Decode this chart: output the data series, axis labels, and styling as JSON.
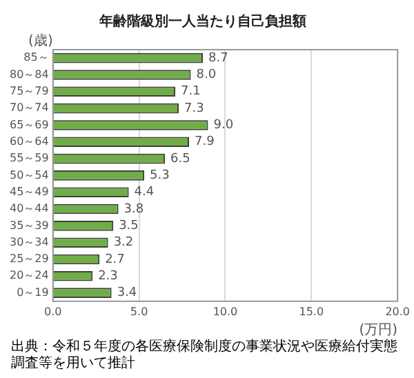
{
  "chart_data": {
    "type": "bar",
    "orientation": "horizontal",
    "title": "年齢階級別一人当たり自己負担額",
    "ylabel": "(歳)",
    "xlabel": "(万円)",
    "categories": [
      "85～",
      "80～84",
      "75～79",
      "70～74",
      "65～69",
      "60～64",
      "55～59",
      "50～54",
      "45～49",
      "40～44",
      "35～39",
      "30～34",
      "25～29",
      "20～24",
      "0～19"
    ],
    "values": [
      8.7,
      8.0,
      7.1,
      7.3,
      9.0,
      7.9,
      6.5,
      5.3,
      4.4,
      3.8,
      3.5,
      3.2,
      2.7,
      2.3,
      3.4
    ],
    "color": "#70ad47",
    "xlim": [
      0,
      20
    ],
    "xticks": [
      {
        "value": 0,
        "label": "0.0"
      },
      {
        "value": 5,
        "label": "5.0"
      },
      {
        "value": 10,
        "label": "10.0"
      },
      {
        "value": 15,
        "label": "15.0"
      },
      {
        "value": 20,
        "label": "20.0"
      }
    ],
    "value_labels": [
      "8.7",
      "8.0",
      "7.1",
      "7.3",
      "9.0",
      "7.9",
      "6.5",
      "5.3",
      "4.4",
      "3.8",
      "3.5",
      "3.2",
      "2.7",
      "2.3",
      "3.4"
    ],
    "grid": "x",
    "legend": false,
    "annotations": [
      "出典：令和５年度の各医療保険制度の事業状況や医療給付実態調査等を用いて推計"
    ]
  }
}
